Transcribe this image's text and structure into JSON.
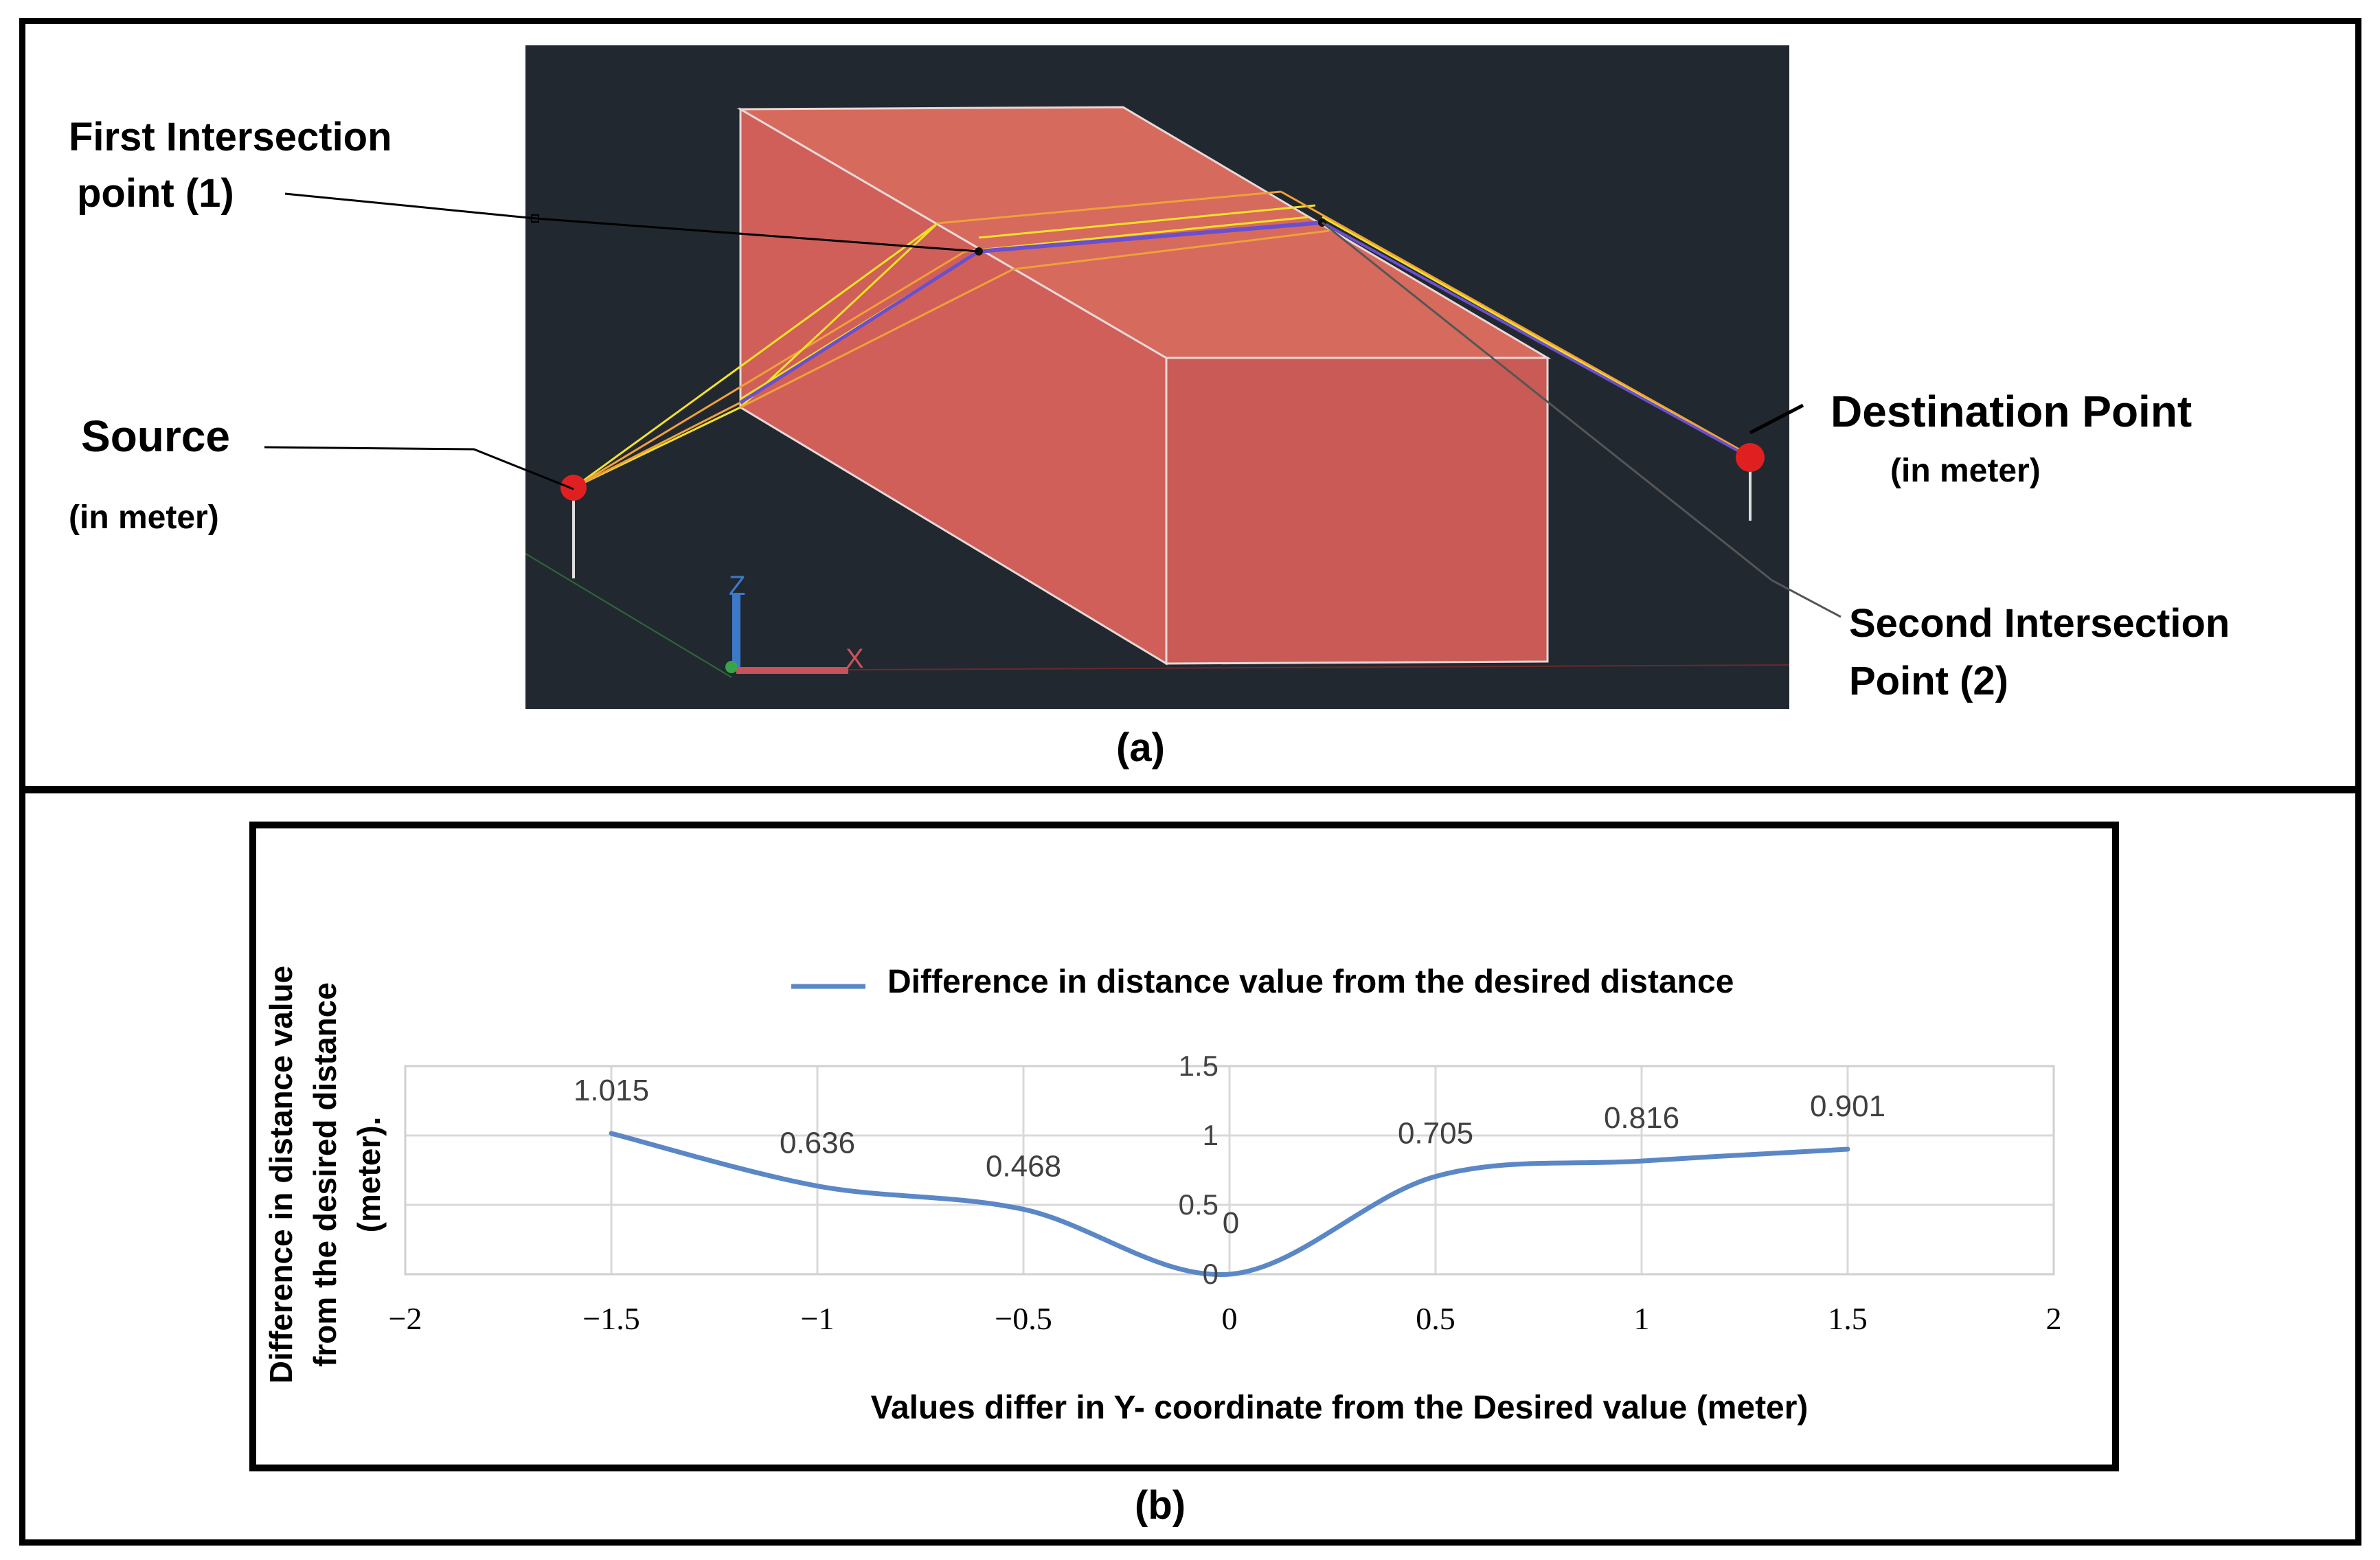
{
  "panel_a": {
    "label": "(a)",
    "first_intersection": [
      "First Intersection",
      "point (1)"
    ],
    "source": "Source",
    "source_unit": "(in meter)",
    "destination": "Destination Point",
    "destination_unit": "(in meter)",
    "second_intersection": [
      "Second Intersection",
      "Point (2)"
    ],
    "axis_z": "Z",
    "axis_x": "X",
    "colors": {
      "background": "#212830",
      "box_front": "#cf5f58",
      "box_side": "#c95a55",
      "box_top": "#d66a5d",
      "rays": "#f2e12a",
      "rays_inner": "#f0a03a",
      "path": "#6a4fd0",
      "endpoint": "#e02020"
    }
  },
  "panel_b": {
    "label": "(b)"
  },
  "chart_data": {
    "type": "line",
    "title": "",
    "legend": "Difference in distance value from the desired distance",
    "legend_position": "top",
    "xlabel": "Values differ in Y- coordinate from the Desired value (meter)",
    "ylabel": [
      "Difference in distance value",
      "from the  desired  distance",
      "(meter)."
    ],
    "xlim": [
      -2,
      2
    ],
    "ylim": [
      0,
      1.5
    ],
    "x_ticks": [
      "−2",
      "−1.5",
      "−1",
      "−0.5",
      "0",
      "0.5",
      "1",
      "1.5",
      "2"
    ],
    "x_tick_values": [
      -2,
      -1.5,
      -1,
      -0.5,
      0,
      0.5,
      1,
      1.5,
      2
    ],
    "y_ticks": [
      "0",
      "0.5",
      "1",
      "1.5"
    ],
    "y_tick_values": [
      0,
      0.5,
      1,
      1.5
    ],
    "grid": true,
    "series": [
      {
        "name": "Difference in distance value from the desired distance",
        "color": "#5b87c6",
        "x": [
          -1.5,
          -1,
          -0.5,
          0,
          0.5,
          1,
          1.5
        ],
        "y": [
          1.015,
          0.636,
          0.468,
          0,
          0.705,
          0.816,
          0.901
        ],
        "labels": [
          "1.015",
          "0.636",
          "0.468",
          "0",
          "0.705",
          "0.816",
          "0.901"
        ]
      }
    ]
  }
}
